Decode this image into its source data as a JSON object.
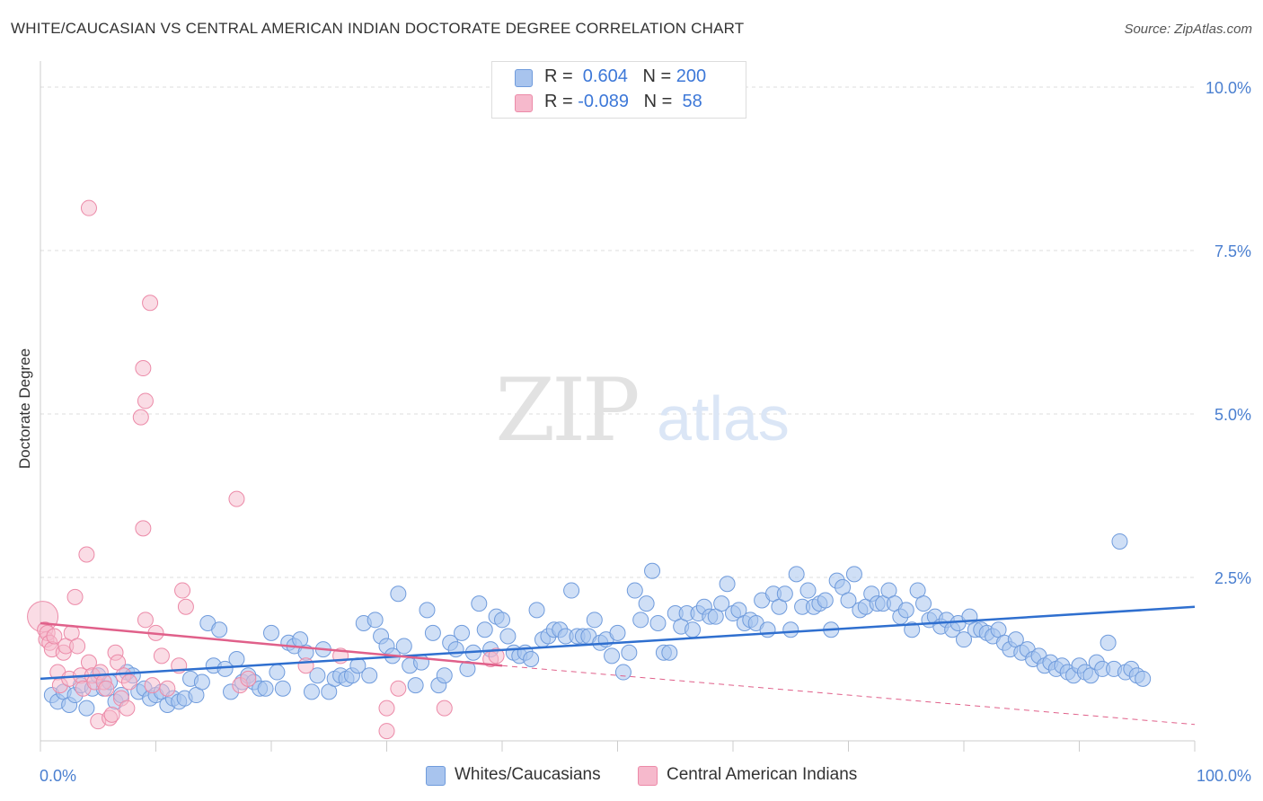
{
  "header": {
    "title": "WHITE/CAUCASIAN VS CENTRAL AMERICAN INDIAN DOCTORATE DEGREE CORRELATION CHART",
    "source": "Source: ZipAtlas.com"
  },
  "legend": {
    "rows": [
      {
        "r_label": "R = ",
        "r_value": " 0.604",
        "n_label": "N = ",
        "n_value": "200"
      },
      {
        "r_label": "R = ",
        "r_value": "-0.089",
        "n_label": "N = ",
        "n_value": " 58"
      }
    ]
  },
  "bottom_legend": {
    "items": [
      "Whites/Caucasians",
      "Central American Indians"
    ]
  },
  "colors": {
    "blue_fill": "#a8c4ee",
    "blue_stroke": "#6f9bdc",
    "blue_line": "#2f6fcf",
    "pink_fill": "#f6b9cc",
    "pink_stroke": "#ec8aa8",
    "pink_line": "#e0608a",
    "tick_text": "#4a7fd0",
    "grid": "#dddddd"
  },
  "watermark": {
    "zip": "ZIP",
    "atlas": "atlas"
  },
  "chart_data": {
    "type": "scatter",
    "title": "WHITE/CAUCASIAN VS CENTRAL AMERICAN INDIAN DOCTORATE DEGREE CORRELATION CHART",
    "ylabel": "Doctorate Degree",
    "xlabel": "",
    "xlim": [
      0,
      100
    ],
    "ylim": [
      0,
      10
    ],
    "x_tick_labels": [
      "0.0%",
      "100.0%"
    ],
    "y_ticks": [
      2.5,
      5.0,
      7.5,
      10.0
    ],
    "y_tick_labels": [
      "2.5%",
      "5.0%",
      "7.5%",
      "10.0%"
    ],
    "grid": true,
    "legend_position": "top-center",
    "series": [
      {
        "name": "Whites/Caucasians",
        "r": 0.604,
        "n": 200,
        "trend": {
          "x": [
            0,
            100
          ],
          "y": [
            0.95,
            2.05
          ]
        },
        "points": [
          [
            1,
            0.7
          ],
          [
            1.5,
            0.6
          ],
          [
            2,
            0.75
          ],
          [
            2.5,
            0.55
          ],
          [
            3,
            0.7
          ],
          [
            3.5,
            0.85
          ],
          [
            4,
            0.5
          ],
          [
            4.5,
            0.8
          ],
          [
            5,
            1.0
          ],
          [
            5.5,
            0.8
          ],
          [
            6,
            0.9
          ],
          [
            6.5,
            0.6
          ],
          [
            7,
            0.7
          ],
          [
            7.5,
            1.05
          ],
          [
            8,
            1.0
          ],
          [
            8.5,
            0.75
          ],
          [
            9,
            0.8
          ],
          [
            9.5,
            0.65
          ],
          [
            10,
            0.7
          ],
          [
            10.5,
            0.75
          ],
          [
            11,
            0.55
          ],
          [
            11.5,
            0.65
          ],
          [
            12,
            0.6
          ],
          [
            12.5,
            0.65
          ],
          [
            13,
            0.95
          ],
          [
            13.5,
            0.7
          ],
          [
            14,
            0.9
          ],
          [
            14.5,
            1.8
          ],
          [
            15,
            1.15
          ],
          [
            15.5,
            1.7
          ],
          [
            16,
            1.1
          ],
          [
            16.5,
            0.75
          ],
          [
            17,
            1.25
          ],
          [
            17.5,
            0.9
          ],
          [
            18,
            1.0
          ],
          [
            18.5,
            0.9
          ],
          [
            19,
            0.8
          ],
          [
            19.5,
            0.8
          ],
          [
            20,
            1.65
          ],
          [
            20.5,
            1.05
          ],
          [
            21,
            0.8
          ],
          [
            21.5,
            1.5
          ],
          [
            22,
            1.45
          ],
          [
            22.5,
            1.55
          ],
          [
            23,
            1.35
          ],
          [
            23.5,
            0.75
          ],
          [
            24,
            1.0
          ],
          [
            24.5,
            1.4
          ],
          [
            25,
            0.75
          ],
          [
            25.5,
            0.95
          ],
          [
            26,
            1.0
          ],
          [
            26.5,
            0.95
          ],
          [
            27,
            1.0
          ],
          [
            27.5,
            1.15
          ],
          [
            28,
            1.8
          ],
          [
            28.5,
            1.0
          ],
          [
            29,
            1.85
          ],
          [
            29.5,
            1.6
          ],
          [
            30,
            1.45
          ],
          [
            30.5,
            1.3
          ],
          [
            31,
            2.25
          ],
          [
            31.5,
            1.45
          ],
          [
            32,
            1.15
          ],
          [
            32.5,
            0.85
          ],
          [
            33,
            1.2
          ],
          [
            33.5,
            2.0
          ],
          [
            34,
            1.65
          ],
          [
            34.5,
            0.85
          ],
          [
            35,
            1.0
          ],
          [
            35.5,
            1.5
          ],
          [
            36,
            1.4
          ],
          [
            36.5,
            1.65
          ],
          [
            37,
            1.1
          ],
          [
            37.5,
            1.35
          ],
          [
            38,
            2.1
          ],
          [
            38.5,
            1.7
          ],
          [
            39,
            1.4
          ],
          [
            39.5,
            1.9
          ],
          [
            40,
            1.85
          ],
          [
            40.5,
            1.6
          ],
          [
            41,
            1.35
          ],
          [
            41.5,
            1.3
          ],
          [
            42,
            1.35
          ],
          [
            42.5,
            1.25
          ],
          [
            43,
            2.0
          ],
          [
            43.5,
            1.55
          ],
          [
            44,
            1.6
          ],
          [
            44.5,
            1.7
          ],
          [
            45,
            1.7
          ],
          [
            45.5,
            1.6
          ],
          [
            46,
            2.3
          ],
          [
            46.5,
            1.6
          ],
          [
            47,
            1.6
          ],
          [
            47.5,
            1.6
          ],
          [
            48,
            1.85
          ],
          [
            48.5,
            1.5
          ],
          [
            49,
            1.55
          ],
          [
            49.5,
            1.3
          ],
          [
            50,
            1.65
          ],
          [
            50.5,
            1.05
          ],
          [
            51,
            1.35
          ],
          [
            51.5,
            2.3
          ],
          [
            52,
            1.85
          ],
          [
            52.5,
            2.1
          ],
          [
            53,
            2.6
          ],
          [
            53.5,
            1.8
          ],
          [
            54,
            1.35
          ],
          [
            54.5,
            1.35
          ],
          [
            55,
            1.95
          ],
          [
            55.5,
            1.75
          ],
          [
            56,
            1.95
          ],
          [
            56.5,
            1.7
          ],
          [
            57,
            1.95
          ],
          [
            57.5,
            2.05
          ],
          [
            58,
            1.9
          ],
          [
            58.5,
            1.9
          ],
          [
            59,
            2.1
          ],
          [
            59.5,
            2.4
          ],
          [
            60,
            1.95
          ],
          [
            60.5,
            2.0
          ],
          [
            61,
            1.8
          ],
          [
            61.5,
            1.85
          ],
          [
            62,
            1.8
          ],
          [
            62.5,
            2.15
          ],
          [
            63,
            1.7
          ],
          [
            63.5,
            2.25
          ],
          [
            64,
            2.05
          ],
          [
            64.5,
            2.25
          ],
          [
            65,
            1.7
          ],
          [
            65.5,
            2.55
          ],
          [
            66,
            2.05
          ],
          [
            66.5,
            2.3
          ],
          [
            67,
            2.05
          ],
          [
            67.5,
            2.1
          ],
          [
            68,
            2.15
          ],
          [
            68.5,
            1.7
          ],
          [
            69,
            2.45
          ],
          [
            69.5,
            2.35
          ],
          [
            70,
            2.15
          ],
          [
            70.5,
            2.55
          ],
          [
            71,
            2.0
          ],
          [
            71.5,
            2.05
          ],
          [
            72,
            2.25
          ],
          [
            72.5,
            2.1
          ],
          [
            73,
            2.1
          ],
          [
            73.5,
            2.3
          ],
          [
            74,
            2.1
          ],
          [
            74.5,
            1.9
          ],
          [
            75,
            2.0
          ],
          [
            75.5,
            1.7
          ],
          [
            76,
            2.3
          ],
          [
            76.5,
            2.1
          ],
          [
            77,
            1.85
          ],
          [
            77.5,
            1.9
          ],
          [
            78,
            1.75
          ],
          [
            78.5,
            1.85
          ],
          [
            79,
            1.7
          ],
          [
            79.5,
            1.8
          ],
          [
            80,
            1.55
          ],
          [
            80.5,
            1.9
          ],
          [
            81,
            1.7
          ],
          [
            81.5,
            1.7
          ],
          [
            82,
            1.65
          ],
          [
            82.5,
            1.6
          ],
          [
            83,
            1.7
          ],
          [
            83.5,
            1.5
          ],
          [
            84,
            1.4
          ],
          [
            84.5,
            1.55
          ],
          [
            85,
            1.35
          ],
          [
            85.5,
            1.4
          ],
          [
            86,
            1.25
          ],
          [
            86.5,
            1.3
          ],
          [
            87,
            1.15
          ],
          [
            87.5,
            1.2
          ],
          [
            88,
            1.1
          ],
          [
            88.5,
            1.15
          ],
          [
            89,
            1.05
          ],
          [
            89.5,
            1.0
          ],
          [
            90,
            1.15
          ],
          [
            90.5,
            1.05
          ],
          [
            91,
            1.0
          ],
          [
            91.5,
            1.2
          ],
          [
            92,
            1.1
          ],
          [
            92.5,
            1.5
          ],
          [
            93,
            1.1
          ],
          [
            93.5,
            3.05
          ],
          [
            94,
            1.05
          ],
          [
            94.5,
            1.1
          ],
          [
            95,
            1.0
          ],
          [
            95.5,
            0.95
          ]
        ]
      },
      {
        "name": "Central American Indians",
        "r": -0.089,
        "n": 58,
        "trend_solid": {
          "x": [
            0,
            40
          ],
          "y": [
            1.8,
            1.15
          ]
        },
        "trend_dashed": {
          "x": [
            40,
            100
          ],
          "y": [
            1.15,
            0.25
          ]
        },
        "points": [
          [
            0.2,
            1.9
          ],
          [
            0.4,
            1.7
          ],
          [
            0.5,
            1.55
          ],
          [
            0.6,
            1.65
          ],
          [
            0.8,
            1.5
          ],
          [
            1,
            1.4
          ],
          [
            1.2,
            1.6
          ],
          [
            1.5,
            1.05
          ],
          [
            1.7,
            0.85
          ],
          [
            2,
            1.35
          ],
          [
            2.2,
            1.45
          ],
          [
            2.5,
            0.95
          ],
          [
            2.7,
            1.65
          ],
          [
            3,
            2.2
          ],
          [
            3.2,
            1.45
          ],
          [
            3.5,
            1.0
          ],
          [
            3.7,
            0.8
          ],
          [
            4,
            2.85
          ],
          [
            4.2,
            1.2
          ],
          [
            4.5,
            1.0
          ],
          [
            4.7,
            0.9
          ],
          [
            5,
            0.3
          ],
          [
            5.2,
            1.05
          ],
          [
            5.5,
            0.9
          ],
          [
            5.7,
            0.8
          ],
          [
            6,
            0.35
          ],
          [
            6.2,
            0.4
          ],
          [
            6.5,
            1.35
          ],
          [
            6.7,
            1.2
          ],
          [
            7,
            0.65
          ],
          [
            7.2,
            1.0
          ],
          [
            7.5,
            0.5
          ],
          [
            7.7,
            0.9
          ],
          [
            4.2,
            8.15
          ],
          [
            8.7,
            4.95
          ],
          [
            8.9,
            5.7
          ],
          [
            8.9,
            3.25
          ],
          [
            9.1,
            5.2
          ],
          [
            9.1,
            1.85
          ],
          [
            9.5,
            6.7
          ],
          [
            9.7,
            0.85
          ],
          [
            10,
            1.65
          ],
          [
            10.5,
            1.3
          ],
          [
            11,
            0.8
          ],
          [
            12,
            1.15
          ],
          [
            12.3,
            2.3
          ],
          [
            12.6,
            2.05
          ],
          [
            17,
            3.7
          ],
          [
            17.3,
            0.85
          ],
          [
            18,
            0.95
          ],
          [
            23,
            1.15
          ],
          [
            26,
            1.3
          ],
          [
            30,
            0.5
          ],
          [
            30,
            0.15
          ],
          [
            31,
            0.8
          ],
          [
            35,
            0.5
          ],
          [
            39,
            1.25
          ],
          [
            39.5,
            1.3
          ]
        ]
      }
    ]
  }
}
